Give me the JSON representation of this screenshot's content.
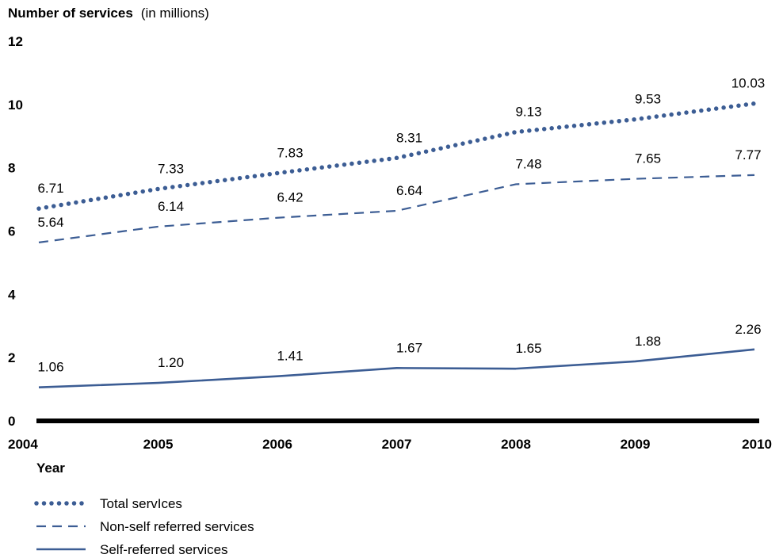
{
  "chart_data": {
    "type": "line",
    "title": "Number of services",
    "title_unit": "(in millions)",
    "xlabel": "Year",
    "ylabel": "",
    "ylim": [
      0,
      12
    ],
    "yticks": [
      "0",
      "2",
      "4",
      "6",
      "8",
      "10",
      "12"
    ],
    "categories": [
      "2004",
      "2005",
      "2006",
      "2007",
      "2008",
      "2009",
      "2010"
    ],
    "grid": false,
    "legend_position": "bottom-left",
    "color": "#3c5d94",
    "series": [
      {
        "name": "Total servIces",
        "style": "dotted",
        "values": [
          6.71,
          7.33,
          7.83,
          8.31,
          9.13,
          9.53,
          10.03
        ],
        "labels": [
          "6.71",
          "7.33",
          "7.83",
          "8.31",
          "9.13",
          "9.53",
          "10.03"
        ]
      },
      {
        "name": "Non-self referred services",
        "style": "dashed",
        "values": [
          5.64,
          6.14,
          6.42,
          6.64,
          7.48,
          7.65,
          7.77
        ],
        "labels": [
          "5.64",
          "6.14",
          "6.42",
          "6.64",
          "7.48",
          "7.65",
          "7.77"
        ]
      },
      {
        "name": "Self-referred services",
        "style": "solid",
        "values": [
          1.06,
          1.2,
          1.41,
          1.67,
          1.65,
          1.88,
          2.26
        ],
        "labels": [
          "1.06",
          "1.20",
          "1.41",
          "1.67",
          "1.65",
          "1.88",
          "2.26"
        ]
      }
    ]
  }
}
